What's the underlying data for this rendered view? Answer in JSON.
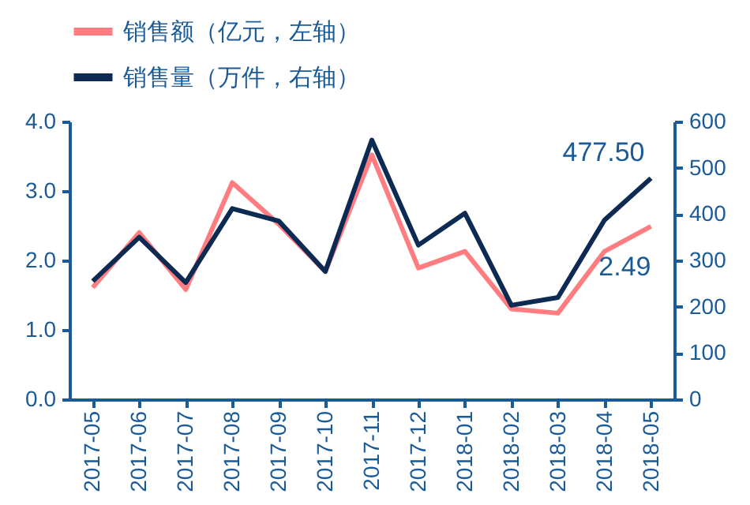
{
  "chart_data": {
    "type": "line",
    "categories": [
      "2017-05",
      "2017-06",
      "2017-07",
      "2017-08",
      "2017-09",
      "2017-10",
      "2017-11",
      "2017-12",
      "2018-01",
      "2018-02",
      "2018-03",
      "2018-04",
      "2018-05"
    ],
    "series": [
      {
        "name": "销售额（亿元，左轴）",
        "color": "#ff7c80",
        "values": [
          1.61,
          2.4,
          1.58,
          3.12,
          2.52,
          1.84,
          3.52,
          1.89,
          2.13,
          1.3,
          1.24,
          2.13,
          2.49
        ],
        "value_labels": [
          null,
          null,
          null,
          null,
          null,
          null,
          null,
          null,
          null,
          null,
          null,
          null,
          "2.49"
        ]
      },
      {
        "name": "销售量（万件，右轴）",
        "color": "#0d2b52",
        "axis": "y2",
        "values": [
          255,
          350,
          252,
          412,
          385,
          276,
          560,
          333,
          402,
          203,
          220,
          387,
          477.5
        ],
        "value_labels": [
          null,
          null,
          null,
          null,
          null,
          null,
          null,
          null,
          null,
          null,
          null,
          null,
          "477.50"
        ]
      }
    ],
    "ylim": [
      0,
      4
    ],
    "yticks": [
      {
        "value": 0,
        "label": "0.0"
      },
      {
        "value": 1,
        "label": "1.0"
      },
      {
        "value": 2,
        "label": "2.0"
      },
      {
        "value": 3,
        "label": "3.0"
      },
      {
        "value": 4,
        "label": "4.0"
      }
    ],
    "y2lim": [
      0,
      600
    ],
    "y2ticks": [
      0,
      100,
      200,
      300,
      400,
      500,
      600
    ],
    "legend": "top",
    "grid": false,
    "marker": "none",
    "line_style": "solid"
  }
}
